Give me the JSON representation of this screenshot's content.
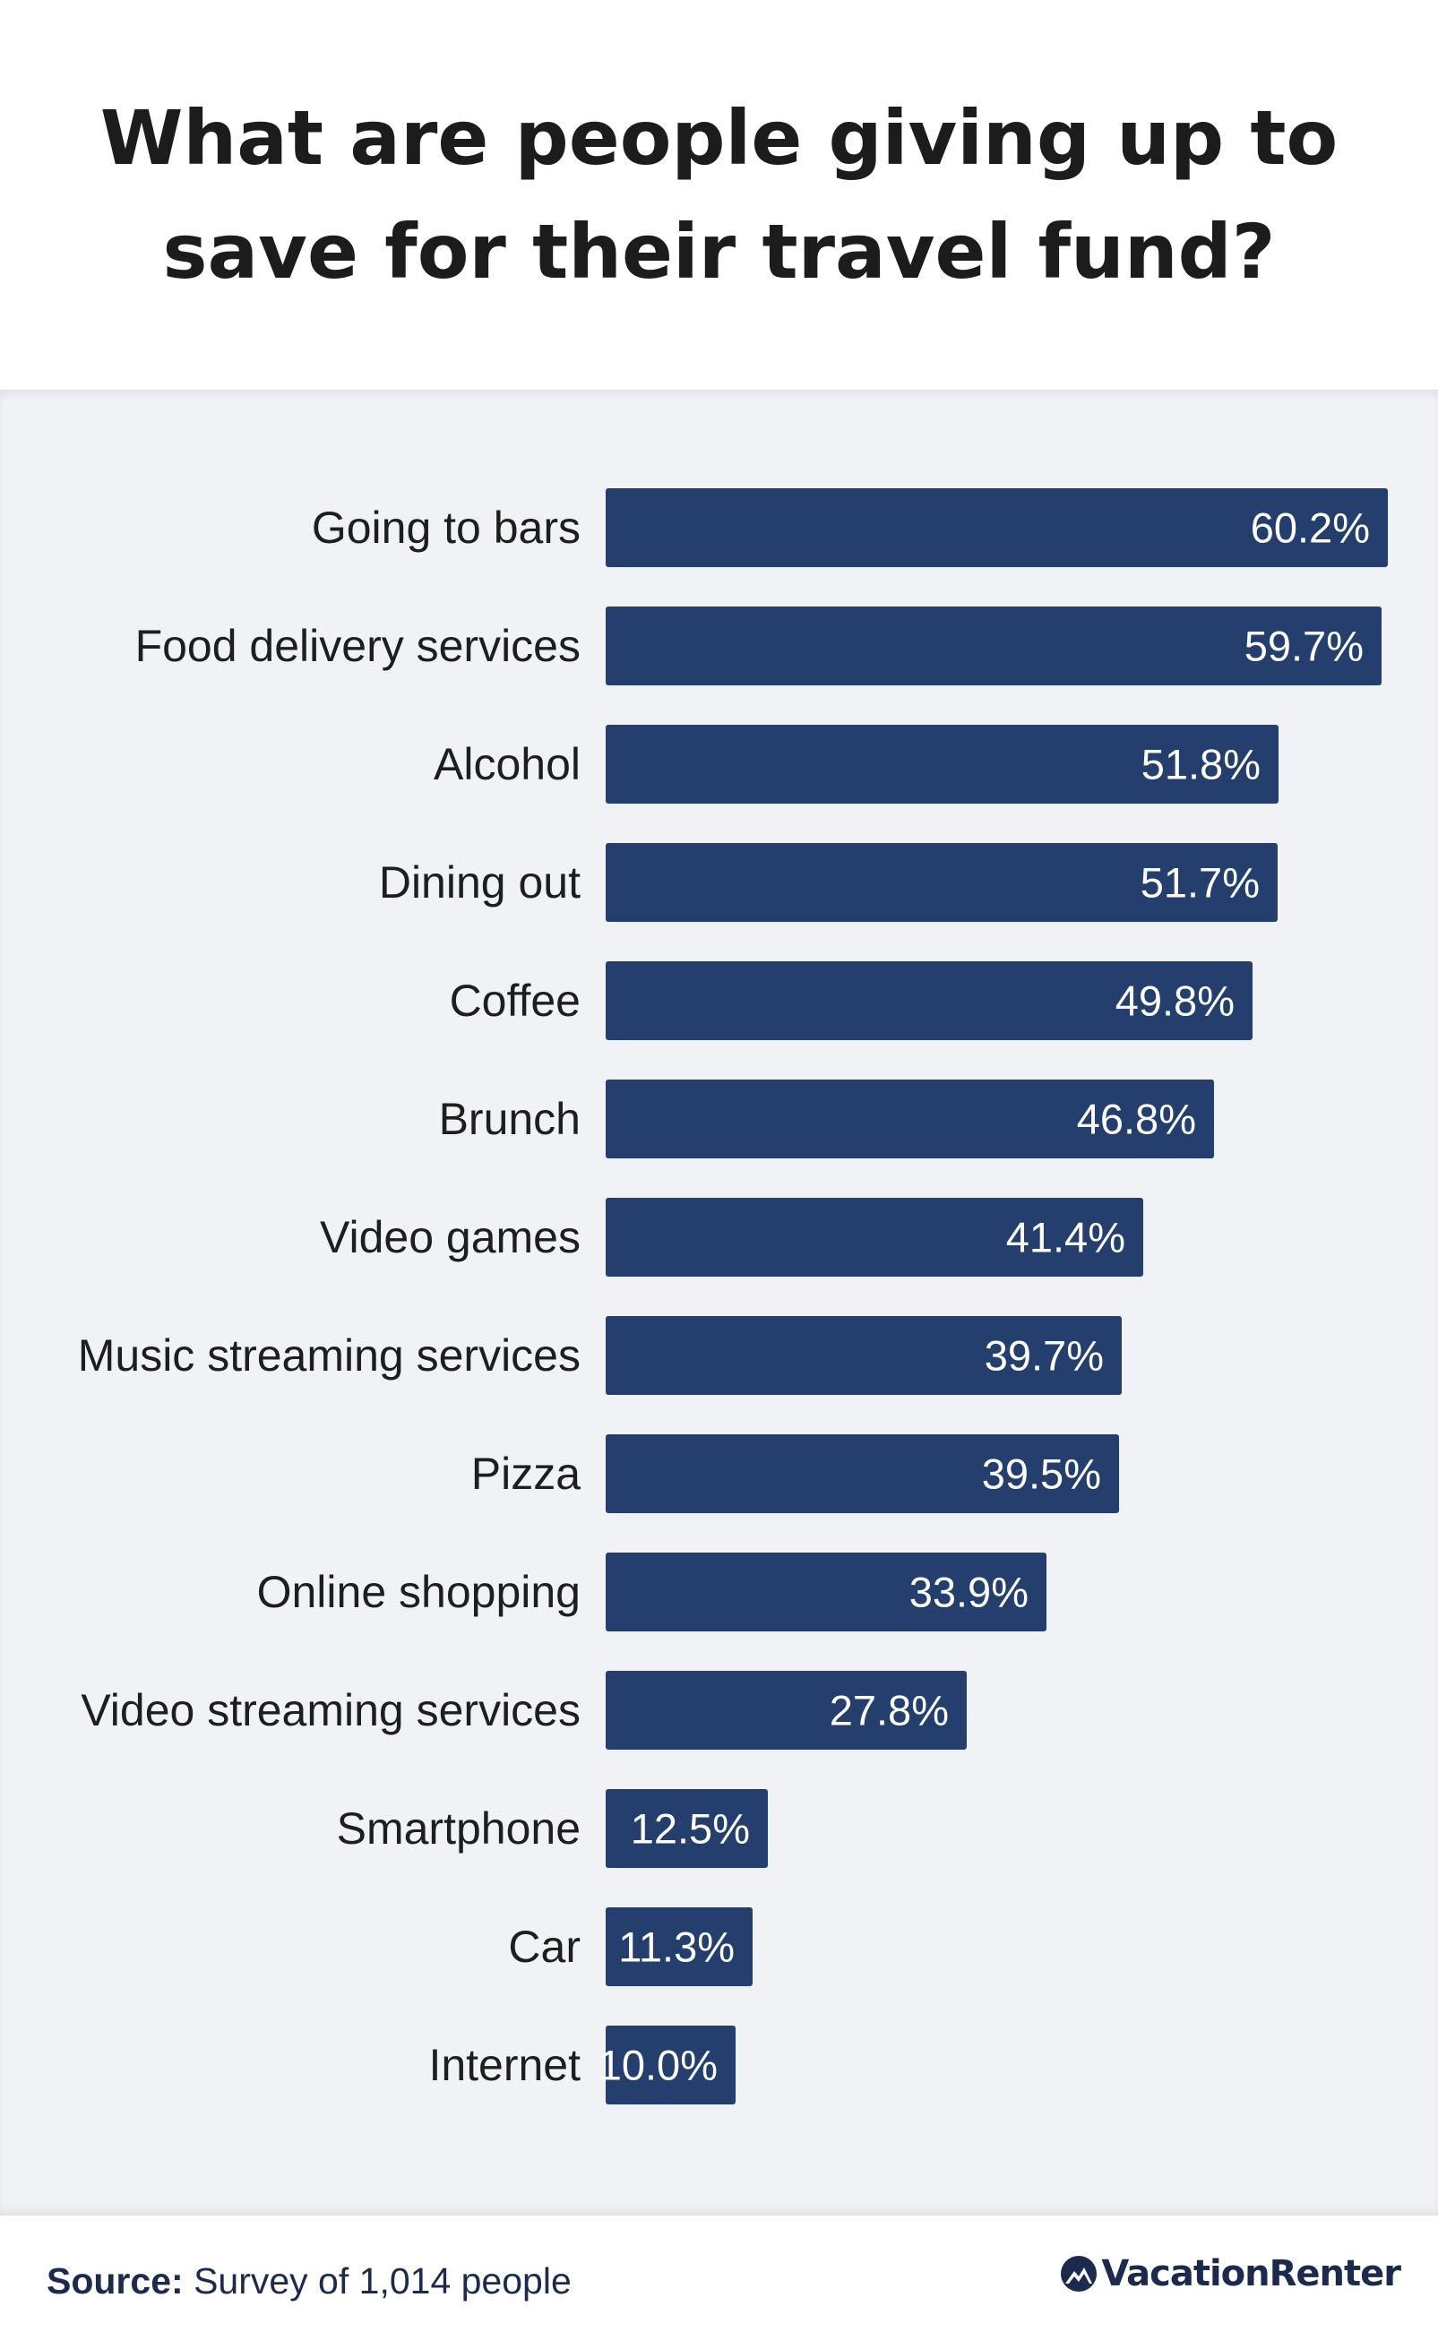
{
  "title": "What are people giving up to save for their travel fund?",
  "source": {
    "label": "Source:",
    "text": "Survey of 1,014 people"
  },
  "brand": {
    "name": "VacationRenter",
    "icon": "mountain-logo-icon"
  },
  "colors": {
    "bar": "#243e6e",
    "panel": "#f0f2f6",
    "label": "#1e1e1e",
    "value_label": "#ffffff"
  },
  "chart_data": {
    "type": "bar",
    "orientation": "horizontal",
    "title": "What are people giving up to save for their travel fund?",
    "categories": [
      "Going to bars",
      "Food delivery services",
      "Alcohol",
      "Dining out",
      "Coffee",
      "Brunch",
      "Video games",
      "Music streaming services",
      "Pizza",
      "Online shopping",
      "Video streaming services",
      "Smartphone",
      "Car",
      "Internet"
    ],
    "values": [
      60.2,
      59.7,
      51.8,
      51.7,
      49.8,
      46.8,
      41.4,
      39.7,
      39.5,
      33.9,
      27.8,
      12.5,
      11.3,
      10.0
    ],
    "value_labels": [
      "60.2%",
      "59.7%",
      "51.8%",
      "51.7%",
      "49.8%",
      "46.8%",
      "41.4%",
      "39.7%",
      "39.5%",
      "33.9%",
      "27.8%",
      "12.5%",
      "11.3%",
      "10.0%"
    ],
    "unit": "%",
    "xlim": [
      0,
      60.2
    ],
    "grid": false,
    "legend": false
  }
}
